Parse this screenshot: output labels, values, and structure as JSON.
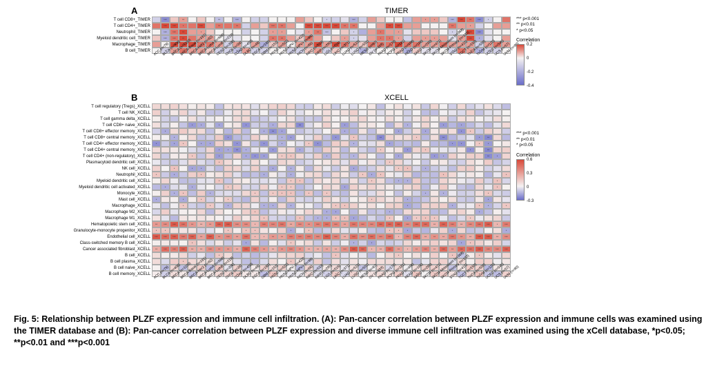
{
  "figure_label": "Fig. 5",
  "caption": "Fig. 5: Relationship between PLZF expression and immune cell infiltration. (A): Pan-cancer correlation between PLZF expression and immune cells was examined using the TIMER database and (B): Pan-cancer correlation between PLZF expression and diverse immune cell infiltration was examined using the xCell database, *p<0.05; **p<0.01 and ***p<0.001",
  "significance_legend": {
    "three_star": "*** p<0.001",
    "two_star": "**  p<0.01",
    "one_star": "*   p<0.05"
  },
  "panelA": {
    "label": "A",
    "title": "TIMER",
    "row_labels": [
      "T cell CD8+_TIMER",
      "T cell CD4+_TIMER",
      "Neutrophil_TIMER",
      "Myeloid dendritic cell_TIMER",
      "Macrophage_TIMER",
      "B cell_TIMER"
    ],
    "col_labels": [
      "ACC (n=79)",
      "BLCA (n=408)",
      "BRCA (n=1100)",
      "BRCA-Basal (n=191)",
      "BRCA-Her2 (n=82)",
      "BRCA-LumA (n=568)",
      "BRCA-LumB (n=219)",
      "CESC (n=306)",
      "CHOL (n=36)",
      "COAD (n=458)",
      "DLBC (n=48)",
      "ESCA (n=185)",
      "GBM (n=153)",
      "HNSC (n=522)",
      "HNSC-HPV- (n=422)",
      "HNSC-HPV+ (n=98)",
      "KICH (n=66)",
      "KIRC (n=533)",
      "KIRP (n=290)",
      "LGG (n=516)",
      "LIHC (n=371)",
      "LUAD (n=515)",
      "LUSC (n=501)",
      "MESO (n=87)",
      "OV (n=303)",
      "PAAD (n=179)",
      "PCPG (n=181)",
      "PRAD (n=498)",
      "READ (n=166)",
      "SARC (n=260)",
      "SKCM (n=471)",
      "SKCM-Metastasis (n=368)",
      "SKCM-Primary (n=103)",
      "STAD (n=415)",
      "TGCT (n=150)",
      "THCA (n=509)",
      "THYM (n=120)",
      "UCEC (n=545)",
      "UCS (n=57)",
      "UVM (n=80)"
    ],
    "colorbar": {
      "title": "Correlation",
      "max": 0.2,
      "mid": 0.0,
      "neg1": -0.2,
      "min": -0.4,
      "pos_color": "#d94a3a",
      "zero_color": "#f5f2f2",
      "neg_color": "#6a6dc9"
    },
    "cells": [
      [
        {
          "v": -0.1,
          "s": ""
        },
        {
          "v": -0.3,
          "s": "***"
        },
        {
          "v": 0.05,
          "s": ""
        },
        {
          "v": 0.1,
          "s": "**"
        },
        {
          "v": 0.0,
          "s": ""
        },
        {
          "v": 0.05,
          "s": ""
        },
        {
          "v": 0.0,
          "s": ""
        },
        {
          "v": -0.15,
          "s": "**"
        },
        {
          "v": 0.0,
          "s": ""
        },
        {
          "v": -0.2,
          "s": "***"
        },
        {
          "v": 0.0,
          "s": ""
        },
        {
          "v": -0.1,
          "s": ""
        },
        {
          "v": -0.1,
          "s": ""
        },
        {
          "v": 0.0,
          "s": ""
        },
        {
          "v": 0.0,
          "s": ""
        },
        {
          "v": 0.0,
          "s": ""
        },
        {
          "v": 0.1,
          "s": ""
        },
        {
          "v": 0.05,
          "s": ""
        },
        {
          "v": 0.0,
          "s": ""
        },
        {
          "v": -0.1,
          "s": "*"
        },
        {
          "v": -0.1,
          "s": ""
        },
        {
          "v": -0.05,
          "s": ""
        },
        {
          "v": -0.2,
          "s": "***"
        },
        {
          "v": -0.1,
          "s": ""
        },
        {
          "v": 0.1,
          "s": ""
        },
        {
          "v": 0.05,
          "s": ""
        },
        {
          "v": 0.0,
          "s": ""
        },
        {
          "v": 0.0,
          "s": ""
        },
        {
          "v": -0.15,
          "s": ""
        },
        {
          "v": 0.1,
          "s": ""
        },
        {
          "v": 0.1,
          "s": "*"
        },
        {
          "v": 0.1,
          "s": "*"
        },
        {
          "v": 0.05,
          "s": ""
        },
        {
          "v": -0.2,
          "s": "***"
        },
        {
          "v": 0.25,
          "s": "***"
        },
        {
          "v": 0.15,
          "s": "**"
        },
        {
          "v": -0.3,
          "s": "***"
        },
        {
          "v": -0.1,
          "s": "*"
        },
        {
          "v": 0.0,
          "s": ""
        },
        {
          "v": 0.15,
          "s": ""
        }
      ],
      [
        {
          "v": 0.15,
          "s": ""
        },
        {
          "v": 0.2,
          "s": "***"
        },
        {
          "v": 0.2,
          "s": "***"
        },
        {
          "v": 0.15,
          "s": "*"
        },
        {
          "v": 0.15,
          "s": ""
        },
        {
          "v": 0.2,
          "s": "***"
        },
        {
          "v": 0.1,
          "s": ""
        },
        {
          "v": 0.15,
          "s": "**"
        },
        {
          "v": 0.15,
          "s": ""
        },
        {
          "v": 0.15,
          "s": "**"
        },
        {
          "v": -0.1,
          "s": ""
        },
        {
          "v": 0.1,
          "s": ""
        },
        {
          "v": 0.05,
          "s": ""
        },
        {
          "v": 0.15,
          "s": "***"
        },
        {
          "v": 0.15,
          "s": "**"
        },
        {
          "v": 0.1,
          "s": ""
        },
        {
          "v": 0.0,
          "s": ""
        },
        {
          "v": 0.2,
          "s": "***"
        },
        {
          "v": 0.2,
          "s": "***"
        },
        {
          "v": 0.25,
          "s": "***"
        },
        {
          "v": 0.25,
          "s": "***"
        },
        {
          "v": 0.15,
          "s": "**"
        },
        {
          "v": 0.15,
          "s": "**"
        },
        {
          "v": 0.0,
          "s": ""
        },
        {
          "v": 0.0,
          "s": ""
        },
        {
          "v": 0.1,
          "s": ""
        },
        {
          "v": 0.2,
          "s": "**"
        },
        {
          "v": 0.2,
          "s": "***"
        },
        {
          "v": 0.1,
          "s": ""
        },
        {
          "v": 0.1,
          "s": ""
        },
        {
          "v": 0.0,
          "s": ""
        },
        {
          "v": 0.0,
          "s": ""
        },
        {
          "v": 0.0,
          "s": ""
        },
        {
          "v": 0.15,
          "s": "**"
        },
        {
          "v": 0.1,
          "s": ""
        },
        {
          "v": 0.1,
          "s": "*"
        },
        {
          "v": -0.1,
          "s": ""
        },
        {
          "v": 0.0,
          "s": ""
        },
        {
          "v": 0.1,
          "s": ""
        },
        {
          "v": 0.1,
          "s": ""
        }
      ],
      [
        {
          "v": 0.0,
          "s": ""
        },
        {
          "v": -0.2,
          "s": "***"
        },
        {
          "v": 0.15,
          "s": "***"
        },
        {
          "v": 0.2,
          "s": "**"
        },
        {
          "v": 0.1,
          "s": ""
        },
        {
          "v": 0.1,
          "s": "*"
        },
        {
          "v": 0.05,
          "s": ""
        },
        {
          "v": 0.0,
          "s": ""
        },
        {
          "v": 0.0,
          "s": ""
        },
        {
          "v": 0.0,
          "s": ""
        },
        {
          "v": -0.1,
          "s": ""
        },
        {
          "v": 0.0,
          "s": ""
        },
        {
          "v": -0.1,
          "s": ""
        },
        {
          "v": 0.1,
          "s": "*"
        },
        {
          "v": 0.1,
          "s": "*"
        },
        {
          "v": 0.0,
          "s": ""
        },
        {
          "v": -0.05,
          "s": ""
        },
        {
          "v": 0.1,
          "s": "*"
        },
        {
          "v": 0.15,
          "s": "**"
        },
        {
          "v": -0.15,
          "s": "***"
        },
        {
          "v": 0.0,
          "s": ""
        },
        {
          "v": 0.05,
          "s": ""
        },
        {
          "v": -0.1,
          "s": "*"
        },
        {
          "v": -0.2,
          "s": ""
        },
        {
          "v": 0.1,
          "s": ""
        },
        {
          "v": 0.15,
          "s": "*"
        },
        {
          "v": 0.1,
          "s": ""
        },
        {
          "v": 0.1,
          "s": "*"
        },
        {
          "v": -0.05,
          "s": ""
        },
        {
          "v": 0.05,
          "s": ""
        },
        {
          "v": 0.05,
          "s": ""
        },
        {
          "v": 0.05,
          "s": ""
        },
        {
          "v": 0.0,
          "s": ""
        },
        {
          "v": -0.1,
          "s": "*"
        },
        {
          "v": 0.0,
          "s": ""
        },
        {
          "v": 0.2,
          "s": "***"
        },
        {
          "v": -0.3,
          "s": "***"
        },
        {
          "v": -0.05,
          "s": ""
        },
        {
          "v": 0.0,
          "s": ""
        },
        {
          "v": 0.0,
          "s": ""
        }
      ],
      [
        {
          "v": 0.05,
          "s": ""
        },
        {
          "v": -0.2,
          "s": "***"
        },
        {
          "v": 0.15,
          "s": "***"
        },
        {
          "v": 0.2,
          "s": "**"
        },
        {
          "v": 0.15,
          "s": ""
        },
        {
          "v": 0.1,
          "s": "*"
        },
        {
          "v": 0.1,
          "s": ""
        },
        {
          "v": 0.0,
          "s": ""
        },
        {
          "v": -0.05,
          "s": ""
        },
        {
          "v": -0.05,
          "s": ""
        },
        {
          "v": 0.0,
          "s": ""
        },
        {
          "v": 0.0,
          "s": ""
        },
        {
          "v": -0.1,
          "s": ""
        },
        {
          "v": 0.15,
          "s": "**"
        },
        {
          "v": 0.15,
          "s": "**"
        },
        {
          "v": 0.1,
          "s": ""
        },
        {
          "v": 0.05,
          "s": ""
        },
        {
          "v": 0.15,
          "s": "**"
        },
        {
          "v": 0.1,
          "s": ""
        },
        {
          "v": 0.0,
          "s": ""
        },
        {
          "v": 0.05,
          "s": ""
        },
        {
          "v": 0.1,
          "s": "*"
        },
        {
          "v": -0.1,
          "s": "*"
        },
        {
          "v": -0.05,
          "s": ""
        },
        {
          "v": 0.1,
          "s": ""
        },
        {
          "v": 0.15,
          "s": "*"
        },
        {
          "v": 0.15,
          "s": "*"
        },
        {
          "v": 0.1,
          "s": "*"
        },
        {
          "v": -0.1,
          "s": ""
        },
        {
          "v": 0.1,
          "s": ""
        },
        {
          "v": 0.1,
          "s": "*"
        },
        {
          "v": 0.1,
          "s": "*"
        },
        {
          "v": 0.1,
          "s": ""
        },
        {
          "v": -0.05,
          "s": ""
        },
        {
          "v": 0.1,
          "s": ""
        },
        {
          "v": 0.2,
          "s": "***"
        },
        {
          "v": -0.2,
          "s": "*"
        },
        {
          "v": -0.05,
          "s": ""
        },
        {
          "v": 0.0,
          "s": ""
        },
        {
          "v": 0.1,
          "s": ""
        }
      ],
      [
        {
          "v": 0.1,
          "s": ""
        },
        {
          "v": 0.0,
          "s": ""
        },
        {
          "v": 0.2,
          "s": "***"
        },
        {
          "v": 0.25,
          "s": "***"
        },
        {
          "v": 0.2,
          "s": ""
        },
        {
          "v": 0.15,
          "s": "**"
        },
        {
          "v": 0.15,
          "s": "*"
        },
        {
          "v": 0.1,
          "s": ""
        },
        {
          "v": -0.1,
          "s": ""
        },
        {
          "v": 0.1,
          "s": "*"
        },
        {
          "v": -0.05,
          "s": ""
        },
        {
          "v": 0.1,
          "s": ""
        },
        {
          "v": -0.2,
          "s": "*"
        },
        {
          "v": 0.05,
          "s": ""
        },
        {
          "v": 0.1,
          "s": ""
        },
        {
          "v": 0.0,
          "s": ""
        },
        {
          "v": 0.1,
          "s": ""
        },
        {
          "v": 0.1,
          "s": "*"
        },
        {
          "v": 0.25,
          "s": "***"
        },
        {
          "v": 0.1,
          "s": "*"
        },
        {
          "v": 0.2,
          "s": "***"
        },
        {
          "v": 0.15,
          "s": "**"
        },
        {
          "v": 0.1,
          "s": "*"
        },
        {
          "v": 0.05,
          "s": ""
        },
        {
          "v": 0.15,
          "s": "**"
        },
        {
          "v": 0.15,
          "s": "*"
        },
        {
          "v": 0.15,
          "s": "*"
        },
        {
          "v": 0.2,
          "s": "***"
        },
        {
          "v": 0.15,
          "s": "*"
        },
        {
          "v": 0.15,
          "s": "*"
        },
        {
          "v": 0.1,
          "s": "*"
        },
        {
          "v": 0.1,
          "s": "*"
        },
        {
          "v": 0.15,
          "s": ""
        },
        {
          "v": 0.1,
          "s": "*"
        },
        {
          "v": 0.1,
          "s": ""
        },
        {
          "v": 0.1,
          "s": "*"
        },
        {
          "v": -0.1,
          "s": ""
        },
        {
          "v": 0.1,
          "s": "*"
        },
        {
          "v": 0.15,
          "s": ""
        },
        {
          "v": 0.1,
          "s": ""
        }
      ],
      [
        {
          "v": 0.0,
          "s": ""
        },
        {
          "v": -0.1,
          "s": "*"
        },
        {
          "v": 0.1,
          "s": "**"
        },
        {
          "v": 0.15,
          "s": "*"
        },
        {
          "v": 0.1,
          "s": ""
        },
        {
          "v": 0.1,
          "s": "*"
        },
        {
          "v": 0.05,
          "s": ""
        },
        {
          "v": -0.1,
          "s": ""
        },
        {
          "v": -0.1,
          "s": ""
        },
        {
          "v": -0.15,
          "s": "**"
        },
        {
          "v": 0.1,
          "s": ""
        },
        {
          "v": -0.1,
          "s": ""
        },
        {
          "v": -0.1,
          "s": ""
        },
        {
          "v": 0.0,
          "s": ""
        },
        {
          "v": 0.0,
          "s": ""
        },
        {
          "v": -0.1,
          "s": ""
        },
        {
          "v": -0.1,
          "s": ""
        },
        {
          "v": 0.05,
          "s": ""
        },
        {
          "v": 0.1,
          "s": ""
        },
        {
          "v": -0.1,
          "s": "*"
        },
        {
          "v": 0.05,
          "s": ""
        },
        {
          "v": 0.0,
          "s": ""
        },
        {
          "v": -0.05,
          "s": ""
        },
        {
          "v": -0.2,
          "s": ""
        },
        {
          "v": -0.05,
          "s": ""
        },
        {
          "v": 0.0,
          "s": ""
        },
        {
          "v": 0.0,
          "s": ""
        },
        {
          "v": 0.05,
          "s": ""
        },
        {
          "v": -0.2,
          "s": "**"
        },
        {
          "v": 0.05,
          "s": ""
        },
        {
          "v": -0.05,
          "s": ""
        },
        {
          "v": -0.05,
          "s": ""
        },
        {
          "v": 0.0,
          "s": ""
        },
        {
          "v": -0.1,
          "s": "*"
        },
        {
          "v": 0.15,
          "s": ""
        },
        {
          "v": 0.1,
          "s": "*"
        },
        {
          "v": -0.2,
          "s": "*"
        },
        {
          "v": -0.1,
          "s": "*"
        },
        {
          "v": -0.1,
          "s": ""
        },
        {
          "v": 0.0,
          "s": ""
        }
      ]
    ]
  },
  "panelB": {
    "label": "B",
    "title": "XCELL",
    "row_labels": [
      "T cell regulatory (Tregs)_XCELL",
      "T cell NK_XCELL",
      "T cell gamma delta_XCELL",
      "T cell CD8+ naive_XCELL",
      "T cell CD8+ effector memory_XCELL",
      "T cell CD8+ central memory_XCELL",
      "T cell CD4+ effector memory_XCELL",
      "T cell CD4+ central memory_XCELL",
      "T cell CD4+ (non-regulatory)_XCELL",
      "Plasmacytoid dendritic cell_XCELL",
      "NK cell_XCELL",
      "Neutrophil_XCELL",
      "Myeloid dendritic cell_XCELL",
      "Myeloid dendritic cell activated_XCELL",
      "Monocyte_XCELL",
      "Mast cell_XCELL",
      "Macrophage_XCELL",
      "Macrophage M2_XCELL",
      "Macrophage M1_XCELL",
      "Hematopoietic stem cell_XCELL",
      "Granulocyte-monocyte progenitor_XCELL",
      "Endothelial cell_XCELL",
      "Class-switched memory B cell_XCELL",
      "Cancer associated fibroblast_XCELL",
      "B cell_XCELL",
      "B cell plasma_XCELL",
      "B cell naive_XCELL",
      "B cell memory_XCELL"
    ],
    "col_labels": [
      "ACC (n=79)",
      "BLCA (n=408)",
      "BRCA (n=1100)",
      "BRCA-Basal (n=191)",
      "BRCA-Her2 (n=82)",
      "BRCA-LumA (n=568)",
      "BRCA-LumB (n=219)",
      "CESC (n=306)",
      "CHOL (n=36)",
      "COAD (n=458)",
      "DLBC (n=48)",
      "ESCA (n=185)",
      "GBM (n=153)",
      "HNSC (n=522)",
      "HNSC-HPV- (n=422)",
      "HNSC-HPV+ (n=98)",
      "KICH (n=66)",
      "KIRC (n=533)",
      "KIRP (n=290)",
      "LGG (n=516)",
      "LIHC (n=371)",
      "LUAD (n=515)",
      "LUSC (n=501)",
      "MESO (n=87)",
      "OV (n=303)",
      "PAAD (n=179)",
      "PCPG (n=181)",
      "PRAD (n=498)",
      "READ (n=166)",
      "SARC (n=260)",
      "SKCM (n=471)",
      "SKCM-Metastasis (n=368)",
      "SKCM-Primary (n=103)",
      "STAD (n=415)",
      "TGCT (n=150)",
      "THCA (n=509)",
      "THYM (n=120)",
      "UCEC (n=545)",
      "UCS (n=57)",
      "UVM (n=80)"
    ],
    "colorbar": {
      "title": "Correlation",
      "max": 0.6,
      "mid1": 0.3,
      "mid2": 0.0,
      "min": -0.3,
      "pos_color": "#d94a3a",
      "zero_color": "#f5f2f2",
      "neg_color": "#6a6dc9"
    },
    "pattern_rows": {
      "hsc_row": 19,
      "endo_row": 21,
      "caf_row": 23
    }
  },
  "colors": {
    "grid_border": "#aaaaaa",
    "background": "#ffffff",
    "text": "#000000"
  }
}
